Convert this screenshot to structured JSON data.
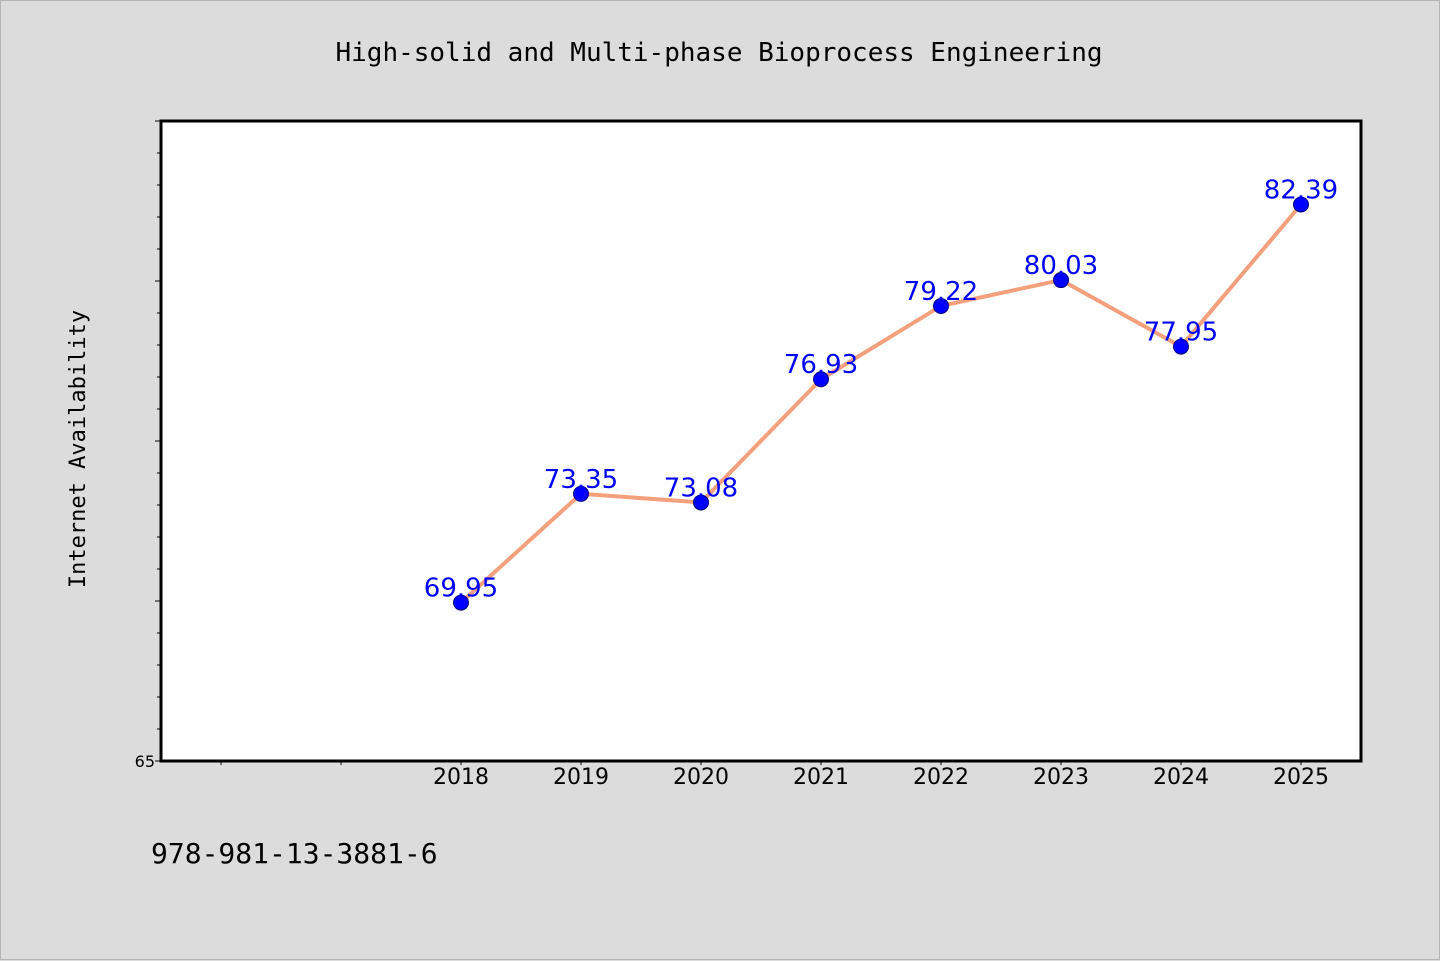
{
  "chart_data": {
    "type": "line",
    "title": "High-solid and Multi-phase Bioprocess Engineering",
    "xlabel": "",
    "ylabel": "Internet Availability",
    "x": [
      "2018",
      "2019",
      "2020",
      "2021",
      "2022",
      "2023",
      "2024",
      "2025"
    ],
    "series": [
      {
        "values": [
          69.95,
          73.35,
          73.08,
          76.93,
          79.22,
          80.03,
          77.95,
          82.39
        ],
        "labels": [
          "69.95",
          "73.35",
          "73.08",
          "76.93",
          "79.22",
          "80.03",
          "77.95",
          "82.39"
        ],
        "line_color": "#f4a07c",
        "marker_color": "#0000ff"
      }
    ],
    "ylim": [
      65,
      85
    ],
    "y_tick_labels": [
      "65"
    ],
    "x_slots_before_first_category": 2,
    "grid": false,
    "legend": "none",
    "label_color": "#0000ff",
    "background_color": "#dcdcdc",
    "plot_background": "#ffffff"
  },
  "footer": {
    "isbn": "978-981-13-3881-6"
  }
}
